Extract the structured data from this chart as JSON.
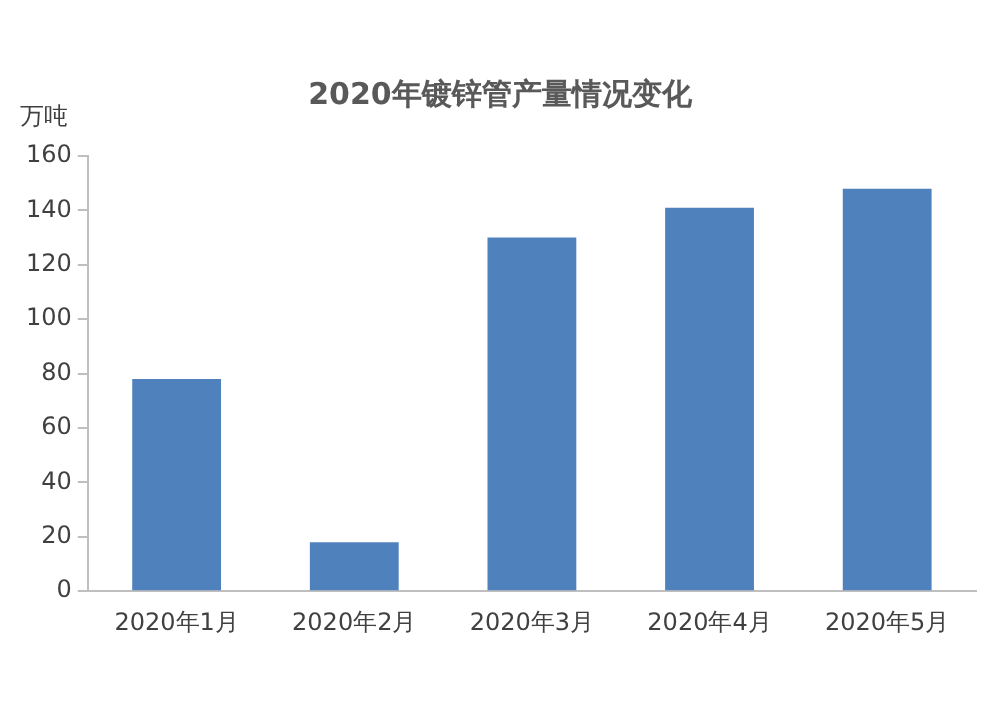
{
  "chart_data": {
    "type": "bar",
    "title": "2020年镀锌管产量情况变化",
    "ylabel": "万吨",
    "categories": [
      "2020年1月",
      "2020年2月",
      "2020年3月",
      "2020年4月",
      "2020年5月"
    ],
    "values": [
      78,
      18,
      130,
      141,
      148
    ],
    "color": "#4f81bd",
    "ylim": [
      0,
      160
    ],
    "yticks": [
      0,
      20,
      40,
      60,
      80,
      100,
      120,
      140,
      160
    ],
    "grid": false,
    "legend": false
  }
}
